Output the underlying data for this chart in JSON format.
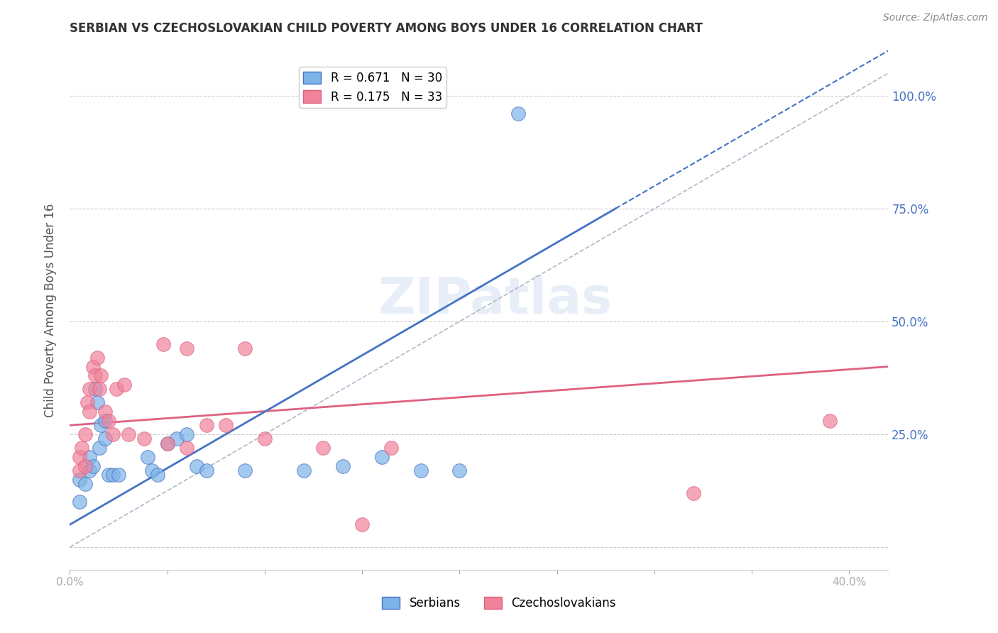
{
  "title": "SERBIAN VS CZECHOSLOVAKIAN CHILD POVERTY AMONG BOYS UNDER 16 CORRELATION CHART",
  "source": "Source: ZipAtlas.com",
  "ylabel": "Child Poverty Among Boys Under 16",
  "xlabel_ticks": [
    0.0,
    0.05,
    0.1,
    0.15,
    0.2,
    0.25,
    0.3,
    0.35,
    0.4
  ],
  "xlabel_labels": [
    "0.0%",
    "",
    "",
    "",
    "",
    "",
    "",
    "",
    "40.0%"
  ],
  "ytick_vals": [
    0.0,
    0.25,
    0.5,
    0.75,
    1.0
  ],
  "ytick_labels": [
    "",
    "25.0%",
    "50.0%",
    "75.0%",
    "100.0%"
  ],
  "xlim": [
    0.0,
    0.42
  ],
  "ylim": [
    -0.05,
    1.1
  ],
  "serbian_R": 0.671,
  "serbian_N": 30,
  "czech_R": 0.175,
  "czech_N": 33,
  "serbian_color": "#7eb3e8",
  "czech_color": "#f0829a",
  "serbian_line_color": "#4472c4",
  "czech_line_color": "#e06080",
  "ref_line_color": "#b0b8c8",
  "watermark": "ZIPatlas",
  "background_color": "#ffffff",
  "plot_bg": "#ffffff",
  "serbian_dots": [
    [
      0.005,
      0.1
    ],
    [
      0.005,
      0.15
    ],
    [
      0.008,
      0.14
    ],
    [
      0.01,
      0.17
    ],
    [
      0.01,
      0.2
    ],
    [
      0.012,
      0.18
    ],
    [
      0.013,
      0.35
    ],
    [
      0.014,
      0.32
    ],
    [
      0.015,
      0.22
    ],
    [
      0.016,
      0.27
    ],
    [
      0.018,
      0.28
    ],
    [
      0.018,
      0.24
    ],
    [
      0.02,
      0.16
    ],
    [
      0.022,
      0.16
    ],
    [
      0.025,
      0.16
    ],
    [
      0.04,
      0.2
    ],
    [
      0.042,
      0.17
    ],
    [
      0.045,
      0.16
    ],
    [
      0.05,
      0.23
    ],
    [
      0.055,
      0.24
    ],
    [
      0.06,
      0.25
    ],
    [
      0.065,
      0.18
    ],
    [
      0.07,
      0.17
    ],
    [
      0.09,
      0.17
    ],
    [
      0.12,
      0.17
    ],
    [
      0.14,
      0.18
    ],
    [
      0.16,
      0.2
    ],
    [
      0.18,
      0.17
    ],
    [
      0.2,
      0.17
    ],
    [
      0.23,
      0.96
    ]
  ],
  "czech_dots": [
    [
      0.005,
      0.17
    ],
    [
      0.005,
      0.2
    ],
    [
      0.006,
      0.22
    ],
    [
      0.008,
      0.18
    ],
    [
      0.008,
      0.25
    ],
    [
      0.009,
      0.32
    ],
    [
      0.01,
      0.3
    ],
    [
      0.01,
      0.35
    ],
    [
      0.012,
      0.4
    ],
    [
      0.013,
      0.38
    ],
    [
      0.014,
      0.42
    ],
    [
      0.015,
      0.35
    ],
    [
      0.016,
      0.38
    ],
    [
      0.018,
      0.3
    ],
    [
      0.02,
      0.28
    ],
    [
      0.022,
      0.25
    ],
    [
      0.024,
      0.35
    ],
    [
      0.028,
      0.36
    ],
    [
      0.03,
      0.25
    ],
    [
      0.038,
      0.24
    ],
    [
      0.048,
      0.45
    ],
    [
      0.05,
      0.23
    ],
    [
      0.06,
      0.44
    ],
    [
      0.06,
      0.22
    ],
    [
      0.07,
      0.27
    ],
    [
      0.08,
      0.27
    ],
    [
      0.09,
      0.44
    ],
    [
      0.1,
      0.24
    ],
    [
      0.13,
      0.22
    ],
    [
      0.15,
      0.05
    ],
    [
      0.165,
      0.22
    ],
    [
      0.32,
      0.12
    ],
    [
      0.39,
      0.28
    ]
  ],
  "serbian_line_x": [
    0.0,
    0.42
  ],
  "serbian_line_y": [
    0.05,
    1.1
  ],
  "serbian_line_solid_end": 0.28,
  "czech_line_x": [
    0.0,
    0.42
  ],
  "czech_line_y": [
    0.27,
    0.4
  ],
  "ref_line_x": [
    0.0,
    0.42
  ],
  "ref_line_y": [
    0.0,
    1.05
  ]
}
